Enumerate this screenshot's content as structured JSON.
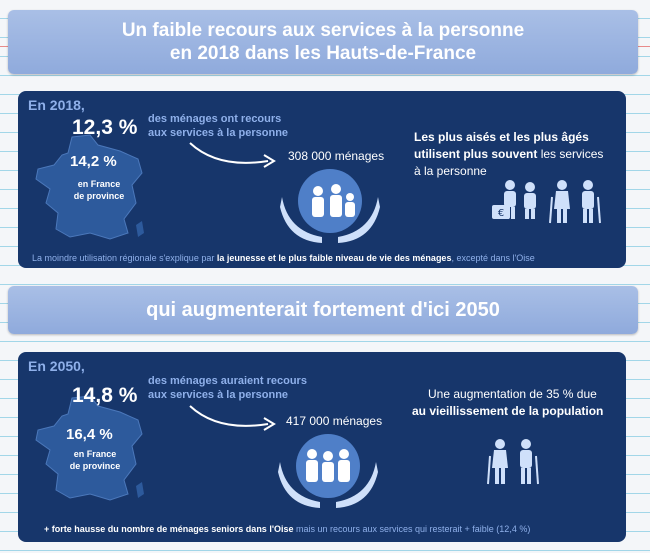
{
  "title": {
    "line1": "Un faible recours aux services à la personne",
    "line2": "en 2018 dans les Hauts-de-France"
  },
  "section1": {
    "year_label": "En 2018,",
    "region_pct": "12,3 %",
    "desc_line1": "des ménages ont recours",
    "desc_line2": "aux services à la personne",
    "province_pct": "14,2 %",
    "province_line1": "en France",
    "province_line2": "de province",
    "households": "308 000 ménages",
    "right_bold1": "Les plus aisés et les plus âgés",
    "right_bold2": "utilisent plus souvent",
    "right_rest2": " les services",
    "right_line3": "à la personne",
    "footnote_a": "La moindre utilisation régionale s'explique par ",
    "footnote_b": "la jeunesse et le plus faible niveau de vie des ménages",
    "footnote_c": ", excepté dans l'Oise"
  },
  "subtitle": "qui augmenterait fortement d'ici 2050",
  "section2": {
    "year_label": "En 2050,",
    "region_pct": "14,8 %",
    "desc_line1": "des ménages auraient recours",
    "desc_line2": "aux services à la personne",
    "province_pct": "16,4 %",
    "province_line1": "en France",
    "province_line2": "de province",
    "households": "417 000 ménages",
    "right_line1": "Une augmentation de 35 % due",
    "right_bold2": "au vieillissement de la population",
    "footnote_a": "+ forte hausse du nombre de ménages seniors dans l'Oise",
    "footnote_b": " mais un recours aux services qui resterait + faible (12,4 %)"
  },
  "colors": {
    "panel": "#17366b",
    "banner": "#8faadc",
    "accent": "#8fb0ea"
  },
  "icons": [
    "france-map-icon",
    "curved-arrow-icon",
    "care-hands-icon",
    "money-icon",
    "elderly-couple-icon"
  ]
}
